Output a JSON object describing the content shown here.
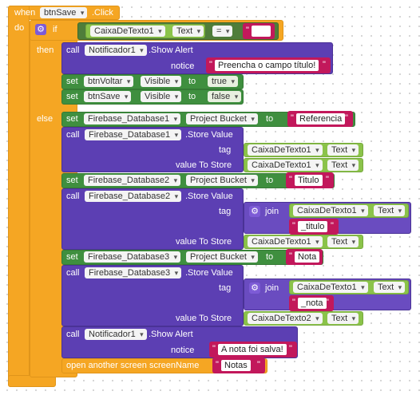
{
  "event": {
    "when": "when",
    "component": "btnSave",
    "event_name": ".Click",
    "do": "do"
  },
  "if_block": {
    "if": "if",
    "then": "then",
    "else": "else"
  },
  "condition": {
    "component": "CaixaDeTexto1",
    "property": "Text",
    "op": "=",
    "value": ""
  },
  "then_call": {
    "call": "call",
    "component": "Notificador1",
    "method": ".Show Alert",
    "param": "notice",
    "value": "Preencha o campo título!"
  },
  "then_set1": {
    "set": "set",
    "component": "btnVoltar",
    "property": "Visible",
    "to": "to",
    "value": "true"
  },
  "then_set2": {
    "set": "set",
    "component": "btnSave",
    "property": "Visible",
    "to": "to",
    "value": "false"
  },
  "else_set1": {
    "set": "set",
    "component": "Firebase_Database1",
    "property": "Project Bucket",
    "to": "to",
    "value": "Referencia"
  },
  "else_call1": {
    "call": "call",
    "component": "Firebase_Database1",
    "method": ".Store Value",
    "tag": "tag",
    "value_to_store": "value To Store",
    "tag_component": "CaixaDeTexto1",
    "tag_property": "Text",
    "val_component": "CaixaDeTexto1",
    "val_property": "Text"
  },
  "else_set2": {
    "set": "set",
    "component": "Firebase_Database2",
    "property": "Project Bucket",
    "to": "to",
    "value": "Titulo"
  },
  "else_call2": {
    "call": "call",
    "component": "Firebase_Database2",
    "method": ".Store Value",
    "tag": "tag",
    "join": "join",
    "join_component": "CaixaDeTexto1",
    "join_property": "Text",
    "join_suffix": "_titulo",
    "value_to_store": "value To Store",
    "val_component": "CaixaDeTexto1",
    "val_property": "Text"
  },
  "else_set3": {
    "set": "set",
    "component": "Firebase_Database3",
    "property": "Project Bucket",
    "to": "to",
    "value": "Nota"
  },
  "else_call3": {
    "call": "call",
    "component": "Firebase_Database3",
    "method": ".Store Value",
    "tag": "tag",
    "join": "join",
    "join_component": "CaixaDeTexto1",
    "join_property": "Text",
    "join_suffix": "_nota",
    "value_to_store": "value To Store",
    "val_component": "CaixaDeTexto2",
    "val_property": "Text"
  },
  "else_call4": {
    "call": "call",
    "component": "Notificador1",
    "method": ".Show Alert",
    "param": "notice",
    "value": "A nota foi salva!"
  },
  "else_open": {
    "label": "open another screen  screenName",
    "value": "Notas"
  },
  "colors": {
    "event": "#f5a623",
    "control": "#f5a623",
    "component_set": "#3f8f3f",
    "component_call": "#5c3fb3",
    "getter": "#8bc34a",
    "text": "#c2185b",
    "logic": "#4f7d3a"
  }
}
